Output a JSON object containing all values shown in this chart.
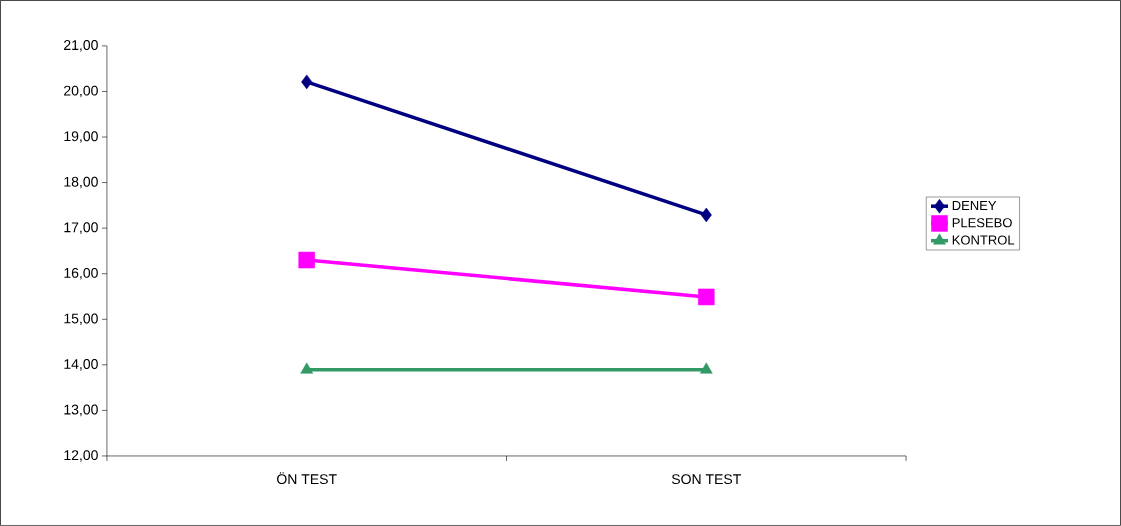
{
  "chart_data": {
    "type": "line",
    "categories": [
      "ÖN TEST",
      "SON TEST"
    ],
    "series": [
      {
        "name": "DENEY",
        "color": "#000080",
        "marker": "diamond",
        "values": [
          20.21,
          17.29
        ]
      },
      {
        "name": "PLESEBO",
        "color": "#ff00ff",
        "marker": "square",
        "values": [
          16.3,
          15.49
        ]
      },
      {
        "name": "KONTROL",
        "color": "#339966",
        "marker": "triangle",
        "values": [
          13.89,
          13.89
        ]
      }
    ],
    "ylim": [
      12,
      21
    ],
    "yticks": [
      {
        "value": 12,
        "label": "12,00"
      },
      {
        "value": 13,
        "label": "13,00"
      },
      {
        "value": 14,
        "label": "14,00"
      },
      {
        "value": 15,
        "label": "15,00"
      },
      {
        "value": 16,
        "label": "16,00"
      },
      {
        "value": 17,
        "label": "17,00"
      },
      {
        "value": 18,
        "label": "18,00"
      },
      {
        "value": 19,
        "label": "19,00"
      },
      {
        "value": 20,
        "label": "20,00"
      },
      {
        "value": 21,
        "label": "21,00"
      }
    ],
    "grid": false,
    "legend": "right",
    "line_style": "solid"
  }
}
